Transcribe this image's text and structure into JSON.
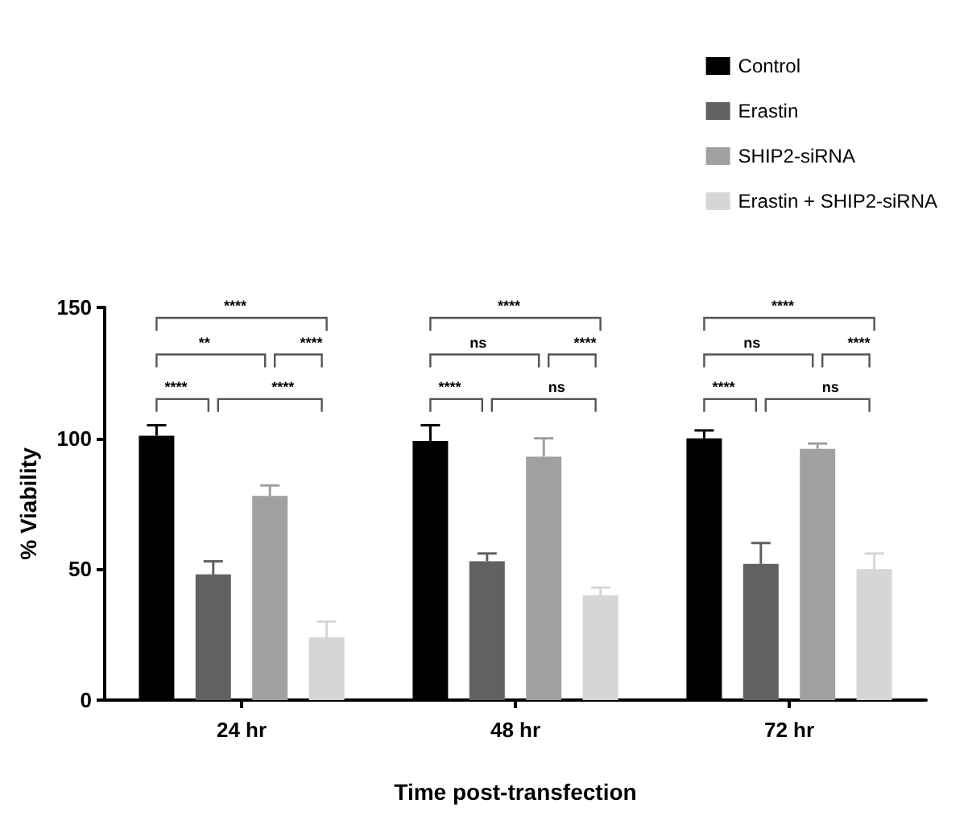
{
  "chart_data": {
    "type": "bar",
    "categories": [
      "24 hr",
      "48 hr",
      "72 hr"
    ],
    "series": [
      {
        "name": "Control",
        "color": "#000000",
        "values": [
          101,
          99,
          100
        ],
        "errors": [
          4,
          6,
          3
        ]
      },
      {
        "name": "Erastin",
        "color": "#616161",
        "values": [
          48,
          53,
          52
        ],
        "errors": [
          5,
          3,
          8
        ]
      },
      {
        "name": "SHIP2-siRNA",
        "color": "#a0a0a2",
        "values": [
          78,
          93,
          96
        ],
        "errors": [
          4,
          7,
          2
        ]
      },
      {
        "name": "Erastin + SHIP2-siRNA",
        "color": "#d6d6d6",
        "values": [
          24,
          40,
          50
        ],
        "errors": [
          6,
          3,
          6
        ]
      }
    ],
    "xlabel": "Time post-transfection",
    "ylabel": "% Viability",
    "ylim": [
      0,
      150
    ],
    "yticks": [
      0,
      50,
      100,
      150
    ],
    "grid": false,
    "legend": "top right",
    "annotations": [
      "****",
      "**",
      "****",
      "****",
      "****",
      "****",
      "ns",
      "****",
      "****",
      "ns",
      "****",
      "ns",
      "****",
      "****",
      "ns"
    ]
  }
}
